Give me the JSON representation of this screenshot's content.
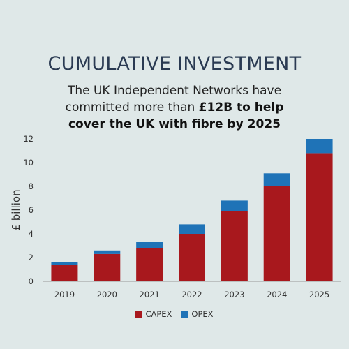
{
  "header": {
    "title": "CUMULATIVE INVESTMENT",
    "subtitle_line1": "The UK Independent Networks have",
    "subtitle_line2_plain": "committed more than ",
    "subtitle_line2_bold": "£12B to help",
    "subtitle_line3_bold": "cover the UK with fibre by 2025"
  },
  "colors": {
    "capex": "#a8181d",
    "opex": "#1f73b7",
    "background": "#dfe8e8"
  },
  "chart_data": {
    "type": "bar",
    "stacked": true,
    "categories": [
      "2019",
      "2020",
      "2021",
      "2022",
      "2023",
      "2024",
      "2025"
    ],
    "series": [
      {
        "name": "CAPEX",
        "values": [
          1.4,
          2.3,
          2.8,
          4.0,
          5.9,
          8.0,
          10.8
        ]
      },
      {
        "name": "OPEX",
        "values": [
          0.2,
          0.3,
          0.5,
          0.8,
          0.9,
          1.1,
          1.2
        ]
      }
    ],
    "ylabel": "£ billion",
    "ylim": [
      0,
      12
    ],
    "yticks": [
      "0",
      "2",
      "4",
      "6",
      "8",
      "10",
      "12"
    ],
    "legend_position": "bottom"
  }
}
